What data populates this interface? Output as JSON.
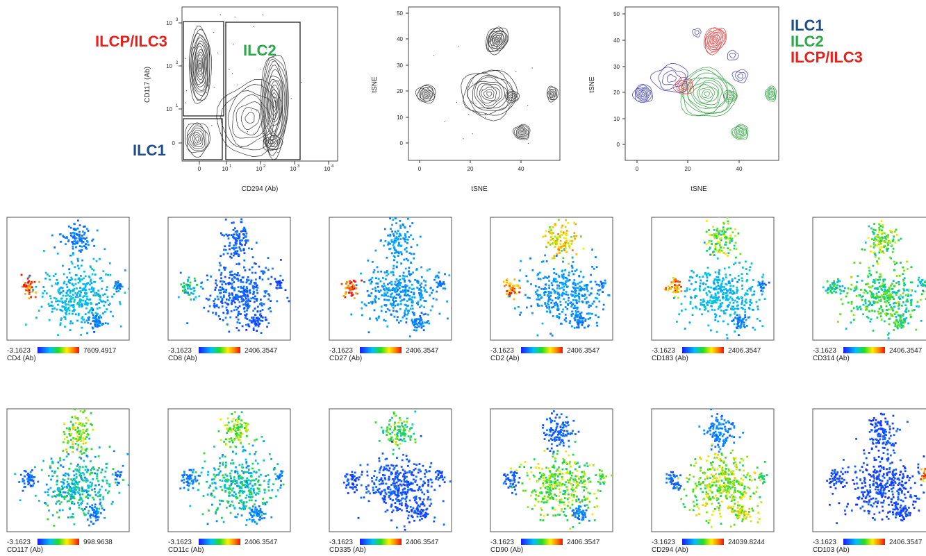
{
  "colors": {
    "ilc1": "#1f4e8c",
    "ilc2": "#2aa84a",
    "ilcp": "#e8201c",
    "contour": "#333333",
    "ilc1_contour": "#3a3aa8",
    "ilc2_contour": "#2f9e3f",
    "ilcp_contour": "#e04545"
  },
  "gate_plot": {
    "xlabel": "CD294 (Ab)",
    "ylabel": "CD117 (Ab)",
    "x_ticks": [
      "0",
      "10",
      "10",
      "10",
      "10"
    ],
    "x_tick_exp": [
      "",
      "1",
      "2",
      "3",
      "4"
    ],
    "y_ticks": [
      "0",
      "10",
      "10",
      "10"
    ],
    "y_tick_exp": [
      "",
      "1",
      "2",
      "3"
    ],
    "labels": {
      "ilcp": "ILCP/ILC3",
      "ilc2": "ILC2",
      "ilc1": "ILC1"
    }
  },
  "tsne_plot": {
    "xlabel": "tSNE",
    "ylabel": "tSNE",
    "x_ticks": [
      "0",
      "20",
      "40"
    ],
    "y_ticks": [
      "0",
      "10",
      "20",
      "30",
      "40",
      "50"
    ]
  },
  "overlay_plot": {
    "xlabel": "tSNE",
    "ylabel": "tSNE",
    "x_ticks": [
      "0",
      "20",
      "40"
    ],
    "y_ticks": [
      "0",
      "10",
      "20",
      "30",
      "40",
      "50"
    ],
    "legend": [
      "ILC1",
      "ILC2",
      "ILCP/ILC3"
    ]
  },
  "chart_data": [
    {
      "type": "scatter",
      "name": "gating-contour",
      "xlabel": "CD294 (Ab)",
      "ylabel": "CD117 (Ab)",
      "x_scale": "biexponential",
      "y_scale": "biexponential",
      "gates": [
        "ILCP/ILC3",
        "ILC2",
        "ILC1"
      ]
    },
    {
      "type": "scatter",
      "name": "tsne-contour",
      "xlabel": "tSNE",
      "ylabel": "tSNE",
      "xlim": [
        -5,
        55
      ],
      "ylim": [
        -7,
        53
      ],
      "clusters": [
        {
          "x": 30,
          "y": 40
        },
        {
          "x": 2,
          "y": 19
        },
        {
          "x": 27,
          "y": 20
        },
        {
          "x": 40,
          "y": 4
        },
        {
          "x": 52,
          "y": 19
        }
      ]
    },
    {
      "type": "scatter",
      "name": "tsne-overlay",
      "xlabel": "tSNE",
      "ylabel": "tSNE",
      "xlim": [
        -5,
        55
      ],
      "ylim": [
        -7,
        53
      ],
      "series": [
        {
          "name": "ILC1",
          "color": "#3a3aa8"
        },
        {
          "name": "ILC2",
          "color": "#2f9e3f"
        },
        {
          "name": "ILCP/ILC3",
          "color": "#e04545"
        }
      ]
    },
    {
      "type": "heatmap",
      "name": "marker-tsne-panels",
      "panels": [
        {
          "marker": "CD4 (Ab)",
          "min": "-3.1623",
          "max": "7609.4917",
          "hi": [
            0.95,
            0.2,
            0.3,
            0.2,
            0.2
          ]
        },
        {
          "marker": "CD8 (Ab)",
          "min": "-3.1623",
          "max": "2406.3547",
          "hi": [
            0.35,
            0.15,
            0.15,
            0.1,
            0.1
          ]
        },
        {
          "marker": "CD27 (Ab)",
          "min": "-3.1623",
          "max": "2406.3547",
          "hi": [
            0.95,
            0.25,
            0.25,
            0.2,
            0.2
          ]
        },
        {
          "marker": "CD2 (Ab)",
          "min": "-3.1623",
          "max": "2406.3547",
          "hi": [
            0.85,
            0.7,
            0.25,
            0.2,
            0.2
          ]
        },
        {
          "marker": "CD183 (Ab)",
          "min": "-3.1623",
          "max": "2406.3547",
          "hi": [
            0.8,
            0.55,
            0.3,
            0.2,
            0.2
          ]
        },
        {
          "marker": "CD314 (Ab)",
          "min": "-3.1623",
          "max": "2406.3547",
          "hi": [
            0.4,
            0.55,
            0.45,
            0.45,
            0.35
          ]
        },
        {
          "marker": "CD117 (Ab)",
          "min": "-3.1623",
          "max": "998.9638",
          "hi": [
            0.15,
            0.6,
            0.35,
            0.2,
            0.2
          ]
        },
        {
          "marker": "CD11c (Ab)",
          "min": "-3.1623",
          "max": "2406.3547",
          "hi": [
            0.2,
            0.55,
            0.35,
            0.2,
            0.2
          ]
        },
        {
          "marker": "CD335 (Ab)",
          "min": "-3.1623",
          "max": "2406.3547",
          "hi": [
            0.1,
            0.5,
            0.12,
            0.1,
            0.1
          ]
        },
        {
          "marker": "CD90 (Ab)",
          "min": "-3.1623",
          "max": "2406.3547",
          "hi": [
            0.15,
            0.15,
            0.55,
            0.2,
            0.5
          ]
        },
        {
          "marker": "CD294 (Ab)",
          "min": "-3.1623",
          "max": "24039.8244",
          "hi": [
            0.15,
            0.2,
            0.6,
            0.65,
            0.5
          ]
        },
        {
          "marker": "CD103 (Ab)",
          "min": "-3.1623",
          "max": "2406.3547",
          "hi": [
            0.1,
            0.1,
            0.1,
            0.1,
            0.85
          ]
        }
      ]
    }
  ]
}
